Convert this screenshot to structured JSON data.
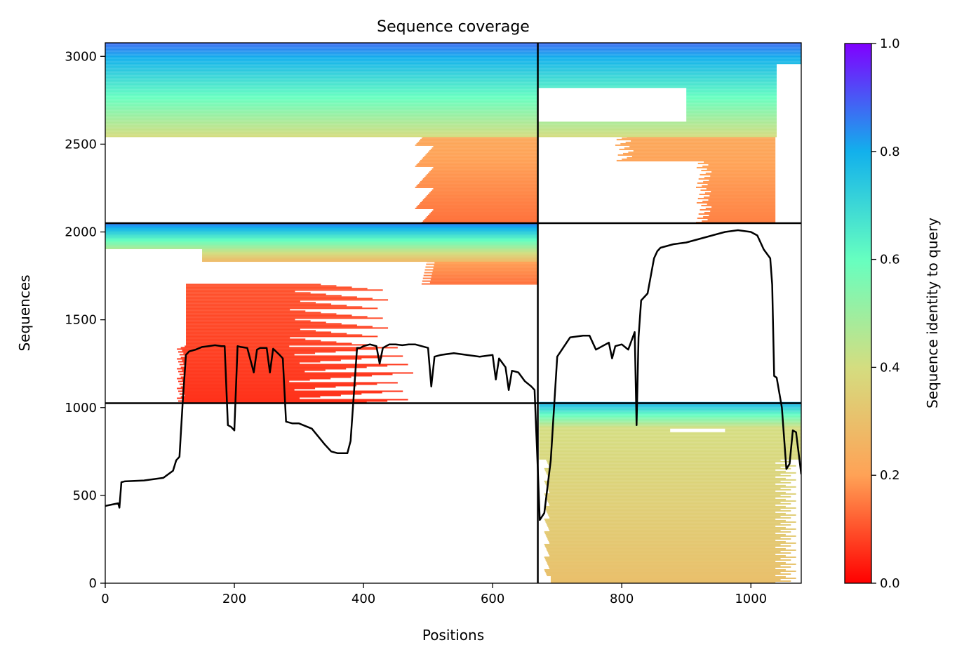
{
  "chart_data": {
    "type": "heatmap",
    "title": "Sequence coverage",
    "xlabel": "Positions",
    "ylabel": "Sequences",
    "xlim": [
      0,
      1078
    ],
    "ylim": [
      0,
      3077
    ],
    "xticks": [
      0,
      200,
      400,
      600,
      800,
      1000
    ],
    "yticks": [
      0,
      500,
      1000,
      1500,
      2000,
      2500,
      3000
    ],
    "colormap": "rainbow_r",
    "colorbar": {
      "label": "Sequence identity to query",
      "range": [
        0,
        1
      ],
      "ticks": [
        "0.0",
        "0.2",
        "0.4",
        "0.6",
        "0.8",
        "1.0"
      ]
    },
    "grid": false,
    "chain_boundaries_x": [
      670
    ],
    "chain_boundaries_y": [
      1025,
      2050
    ],
    "msa_blocks": [
      {
        "name": "block-chain2-paired-low",
        "x": [
          670,
          1078
        ],
        "y": [
          0,
          1025
        ],
        "identity": [
          0.3,
          0.72
        ],
        "coverage": "dense"
      },
      {
        "name": "block-chain1-mid",
        "x": [
          0,
          670
        ],
        "y": [
          1025,
          2050
        ],
        "identity": [
          0.05,
          0.9
        ],
        "coverage": "partial"
      },
      {
        "name": "block-chain1-top",
        "x": [
          0,
          670
        ],
        "y": [
          2050,
          3077
        ],
        "identity": [
          0.12,
          0.9
        ],
        "coverage": "partial"
      },
      {
        "name": "block-chain2-top",
        "x": [
          670,
          1078
        ],
        "y": [
          2050,
          3077
        ],
        "identity": [
          0.15,
          0.9
        ],
        "coverage": "partial"
      }
    ],
    "coverage_line": {
      "name": "coverage",
      "color": "#000000",
      "x": [
        0,
        20,
        22,
        25,
        30,
        60,
        90,
        105,
        110,
        115,
        120,
        125,
        130,
        140,
        150,
        160,
        170,
        180,
        185,
        190,
        195,
        200,
        205,
        210,
        220,
        230,
        235,
        240,
        250,
        255,
        260,
        270,
        275,
        280,
        290,
        300,
        320,
        340,
        350,
        360,
        375,
        380,
        390,
        395,
        400,
        410,
        420,
        425,
        430,
        440,
        450,
        460,
        470,
        480,
        490,
        500,
        505,
        510,
        520,
        540,
        560,
        580,
        600,
        605,
        610,
        620,
        625,
        630,
        640,
        650,
        660,
        665,
        670,
        673,
        680,
        690,
        700,
        720,
        740,
        750,
        760,
        780,
        785,
        790,
        800,
        810,
        820,
        823,
        826,
        830,
        840,
        850,
        855,
        860,
        870,
        880,
        900,
        920,
        940,
        960,
        980,
        1000,
        1010,
        1020,
        1030,
        1033,
        1036,
        1040,
        1048,
        1055,
        1060,
        1065,
        1070,
        1078
      ],
      "y": [
        440,
        455,
        430,
        575,
        580,
        585,
        600,
        640,
        700,
        720,
        1030,
        1300,
        1320,
        1330,
        1345,
        1350,
        1355,
        1350,
        1350,
        900,
        890,
        870,
        1350,
        1345,
        1340,
        1200,
        1330,
        1340,
        1340,
        1200,
        1335,
        1300,
        1280,
        920,
        910,
        910,
        880,
        790,
        750,
        740,
        740,
        810,
        1340,
        1340,
        1350,
        1360,
        1350,
        1250,
        1340,
        1360,
        1360,
        1355,
        1360,
        1360,
        1350,
        1340,
        1120,
        1290,
        1300,
        1310,
        1300,
        1290,
        1300,
        1160,
        1280,
        1230,
        1100,
        1210,
        1200,
        1150,
        1120,
        1100,
        650,
        360,
        400,
        700,
        1290,
        1400,
        1410,
        1410,
        1330,
        1370,
        1280,
        1350,
        1360,
        1330,
        1430,
        900,
        1400,
        1610,
        1650,
        1850,
        1890,
        1910,
        1920,
        1930,
        1940,
        1960,
        1980,
        2000,
        2010,
        2000,
        1980,
        1900,
        1850,
        1700,
        1180,
        1170,
        1000,
        650,
        680,
        870,
        860,
        620
      ]
    }
  }
}
